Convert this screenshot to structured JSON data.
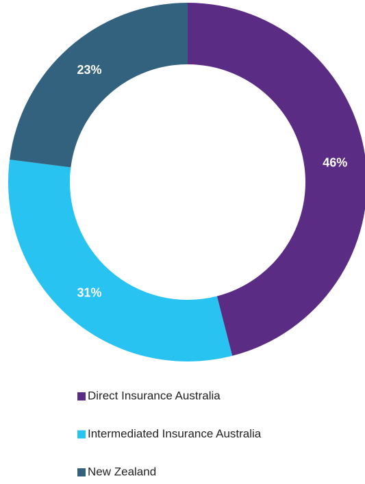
{
  "chart_data": {
    "type": "donut",
    "categories": [
      "Direct Insurance Australia",
      "Intermediated Insurance Australia",
      "New Zealand"
    ],
    "values": [
      46,
      31,
      23
    ],
    "value_labels": [
      "46%",
      "31%",
      "23%"
    ],
    "colors": [
      "#5b2c83",
      "#29c3f2",
      "#33627f"
    ],
    "legend": "bottom"
  }
}
